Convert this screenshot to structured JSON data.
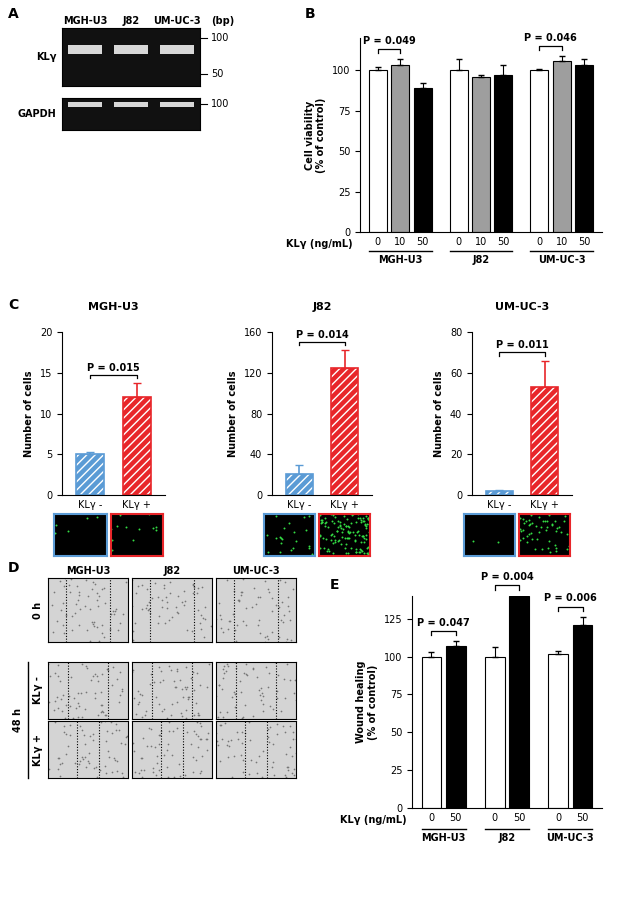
{
  "panel_labels": [
    "A",
    "B",
    "C",
    "D",
    "E"
  ],
  "gel": {
    "lanes": [
      "MGH-U3",
      "J82",
      "UM-UC-3"
    ],
    "unit_label": "(bp)",
    "blots": [
      {
        "label": "KLγ",
        "markers": [
          100,
          50
        ]
      },
      {
        "label": "GAPDH",
        "markers": [
          100
        ]
      }
    ]
  },
  "chart_data": [
    {
      "type": "bar",
      "y_label": "Cell viability\n(% of control)",
      "x_label": "KLγ (ng/mL)",
      "categories": [
        "0",
        "10",
        "50",
        "0",
        "10",
        "50",
        "0",
        "10",
        "50"
      ],
      "groups": [
        "MGH-U3",
        "MGH-U3",
        "MGH-U3",
        "J82",
        "J82",
        "J82",
        "UM-UC-3",
        "UM-UC-3",
        "UM-UC-3"
      ],
      "values": [
        100,
        103,
        89,
        100,
        96,
        97,
        100,
        106,
        103
      ],
      "errors": [
        2,
        4,
        3,
        7,
        1,
        6,
        1,
        3,
        4
      ],
      "colors": [
        "#ffffff",
        "#9e9e9e",
        "#000000",
        "#ffffff",
        "#9e9e9e",
        "#000000",
        "#ffffff",
        "#9e9e9e",
        "#000000"
      ],
      "ylim": [
        0,
        120
      ],
      "yticks": [
        0,
        25,
        50,
        75,
        100
      ],
      "annotations": [
        {
          "text": "P = 0.049",
          "between": [
            0,
            1
          ]
        },
        {
          "text": "P = 0.046",
          "between": [
            6,
            7
          ]
        }
      ]
    },
    {
      "type": "bar",
      "title": "MGH-U3",
      "y_label": "Number of cells",
      "categories": [
        "KLγ -",
        "KLγ +"
      ],
      "values": [
        5,
        12
      ],
      "errors": [
        0.3,
        1.7
      ],
      "colors": [
        "#5b9bd5",
        "#e8262a"
      ],
      "ylim": [
        0,
        20
      ],
      "yticks": [
        0,
        5,
        10,
        15,
        20
      ],
      "annotations": [
        {
          "text": "P = 0.015",
          "between": [
            0,
            1
          ]
        }
      ]
    },
    {
      "type": "bar",
      "title": "J82",
      "y_label": "Number of cells",
      "categories": [
        "KLγ -",
        "KLγ +"
      ],
      "values": [
        21,
        125
      ],
      "errors": [
        8,
        17
      ],
      "colors": [
        "#5b9bd5",
        "#e8262a"
      ],
      "ylim": [
        0,
        160
      ],
      "yticks": [
        0,
        40,
        80,
        120,
        160
      ],
      "annotations": [
        {
          "text": "P = 0.014",
          "between": [
            0,
            1
          ]
        }
      ]
    },
    {
      "type": "bar",
      "title": "UM-UC-3",
      "y_label": "Number of cells",
      "categories": [
        "KLγ -",
        "KLγ +"
      ],
      "values": [
        2,
        53
      ],
      "errors": [
        0.5,
        13
      ],
      "colors": [
        "#5b9bd5",
        "#e8262a"
      ],
      "ylim": [
        0,
        80
      ],
      "yticks": [
        0,
        20,
        40,
        60,
        80
      ],
      "annotations": [
        {
          "text": "P = 0.011",
          "between": [
            0,
            1
          ]
        }
      ]
    },
    {
      "type": "bar",
      "y_label": "Wound healing\n(% of control)",
      "x_label": "KLγ (ng/mL)",
      "categories": [
        "0",
        "50",
        "0",
        "50",
        "0",
        "50"
      ],
      "groups": [
        "MGH-U3",
        "MGH-U3",
        "J82",
        "J82",
        "UM-UC-3",
        "UM-UC-3"
      ],
      "values": [
        100,
        107,
        100,
        140,
        102,
        121
      ],
      "errors": [
        3,
        3,
        6,
        null,
        2,
        5
      ],
      "colors": [
        "#ffffff",
        "#000000",
        "#ffffff",
        "#000000",
        "#ffffff",
        "#000000"
      ],
      "ylim": [
        0,
        140
      ],
      "yticks": [
        0,
        25,
        50,
        75,
        100,
        125
      ],
      "annotations": [
        {
          "text": "P = 0.047",
          "between": [
            0,
            1
          ]
        },
        {
          "text": "P = 0.004",
          "between": [
            2,
            3
          ]
        },
        {
          "text": "P = 0.006",
          "between": [
            4,
            5
          ]
        }
      ]
    }
  ],
  "micrographs": {
    "columns": [
      "MGH-U3",
      "J82",
      "UM-UC-3"
    ],
    "rows": [
      {
        "label": "0 h"
      },
      {
        "label": "KLγ -",
        "group": "48 h"
      },
      {
        "label": "KLγ +",
        "group": "48 h"
      }
    ]
  }
}
